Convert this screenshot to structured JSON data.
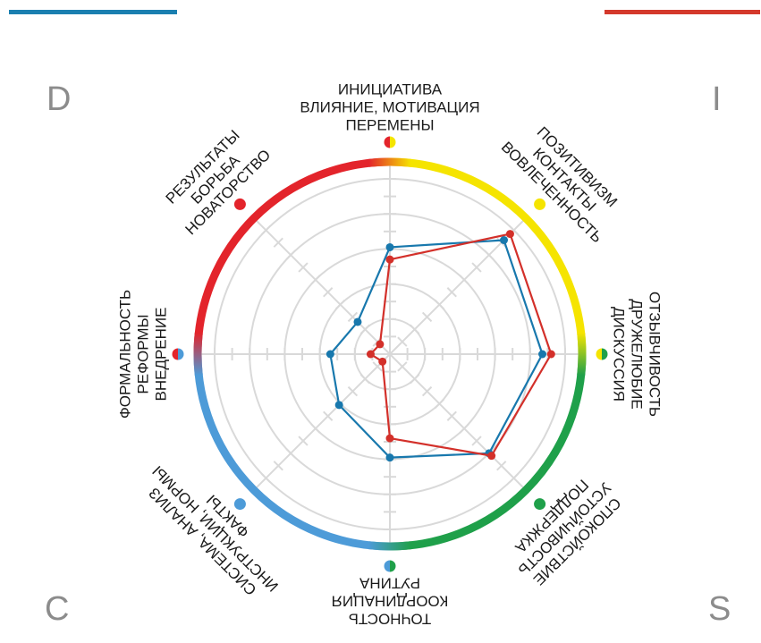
{
  "corners": {
    "d": "D",
    "i": "I",
    "c": "C",
    "s": "S"
  },
  "colors": {
    "blue_bar": "#1a7fb0",
    "red_bar": "#d4392c",
    "ring_red": "#e3242b",
    "ring_yellow": "#f5e400",
    "ring_green": "#1fa04a",
    "ring_blue": "#4d9bd8",
    "grid": "#d9d9d9",
    "series_blue": "#1878ad",
    "series_red": "#d3302a"
  },
  "chart_data": {
    "type": "radar",
    "axes": [
      {
        "lines": [
          "ИНИЦИАТИВА",
          "ВЛИЯНИЕ, МОТИВАЦИЯ",
          "ПЕРЕМЕНЫ"
        ],
        "dot": [
          "#e3242b",
          "#f5e400"
        ]
      },
      {
        "lines": [
          "ПОЗИТИВИЗМ",
          "КОНТАКТЫ",
          "ВОВЛЕЧЕННОСТЬ"
        ],
        "dot": [
          "#f5e400"
        ]
      },
      {
        "lines": [
          "ОТЗЫВЧИВОСТЬ",
          "ДРУЖЕЛЮБИЕ",
          "ДИСКУССИЯ"
        ],
        "dot": [
          "#f5e400",
          "#1fa04a"
        ]
      },
      {
        "lines": [
          "СПОКОЙСТВИЕ",
          "УСТОЙЧИВОСТЬ",
          "ПОДДЕРЖКА"
        ],
        "dot": [
          "#1fa04a"
        ]
      },
      {
        "lines": [
          "ТОЧНОСТЬ",
          "КООРДИНАЦИЯ",
          "РУТИНА"
        ],
        "dot": [
          "#4d9bd8",
          "#1fa04a"
        ]
      },
      {
        "lines": [
          "СИСТЕМА, АНАЛИЗ",
          "ИНСТРУКЦИИ, НОРМЫ",
          "ФАКТЫ"
        ],
        "dot": [
          "#4d9bd8"
        ]
      },
      {
        "lines": [
          "ФОРМАЛЬНОСТЬ",
          "РЕФОРМЫ",
          "ВНЕДРЕНИЕ"
        ],
        "dot": [
          "#e3242b",
          "#4d9bd8"
        ]
      },
      {
        "lines": [
          "РЕЗУЛЬТАТЫ",
          "БОРЬБА",
          "НОВАТОРСТВО"
        ],
        "dot": [
          "#e3242b"
        ]
      }
    ],
    "rings": 5,
    "max": 100,
    "series": [
      {
        "color": "#1878ad",
        "values": [
          61,
          92,
          87,
          80,
          59,
          41,
          34,
          26
        ]
      },
      {
        "color": "#d3302a",
        "values": [
          54,
          97,
          92,
          82,
          48,
          6,
          11,
          8
        ]
      }
    ]
  }
}
